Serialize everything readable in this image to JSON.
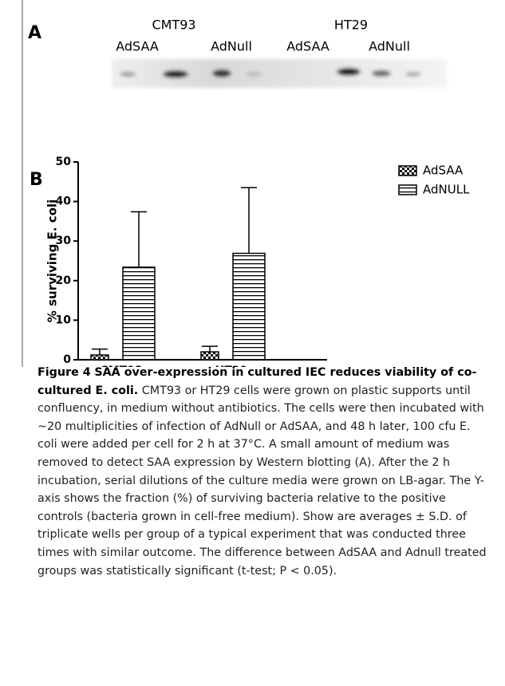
{
  "panel_a": {
    "label": "A",
    "groups": [
      "CMT93",
      "HT29"
    ],
    "lanes": [
      "AdSAA",
      "AdNull",
      "AdSAA",
      "AdNull"
    ]
  },
  "panel_b_label": "B",
  "chart_data": {
    "type": "bar",
    "y_label": "% surviving E. coli",
    "categories": [
      "CMT93",
      "HT29"
    ],
    "series": [
      {
        "name": "AdSAA",
        "color": "#000000",
        "pattern": "checker",
        "values": [
          1.2,
          2.0
        ],
        "errors": [
          1.5,
          1.4
        ]
      },
      {
        "name": "AdNULL",
        "color": "#000000",
        "pattern": "hstripe",
        "values": [
          23.4,
          26.9
        ],
        "errors": [
          14.0,
          16.6
        ]
      }
    ],
    "ylim": [
      0,
      50
    ],
    "yticks": [
      0,
      10,
      20,
      30,
      40,
      50
    ],
    "legend": "upper right"
  },
  "caption": {
    "label": "Figure 4",
    "title": "SAA over-expression in cultured IEC reduces viability of co-cultured E. coli.",
    "text": "CMT93 or HT29 cells were grown on plastic supports until confluency, in medium without antibiotics. The cells were then incubated with ~20 multiplicities of infection of AdNull or AdSAA, and 48 h later, 100 cfu E. coli were added per cell for 2 h at 37°C. A small amount of medium was removed to detect SAA expression by Western blotting (A). After the 2 h incubation, serial dilutions of the culture media were grown on LB-agar. The Y-axis shows the fraction (%) of surviving bacteria relative to the positive controls (bacteria grown in cell-free medium). Show are averages ± S.D. of triplicate wells per group of a typical experiment that was conducted three times with similar outcome. The difference between AdSAA and Adnull treated groups was statistically significant (t-test; P < 0.05)."
  }
}
